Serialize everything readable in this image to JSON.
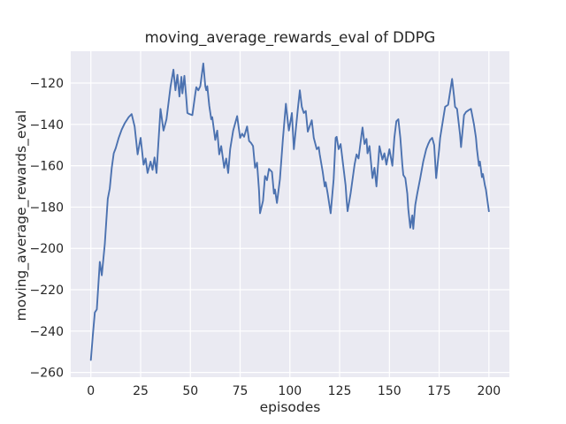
{
  "chart_data": {
    "type": "line",
    "title": "moving_average_rewards_eval of DDPG",
    "xlabel": "episodes",
    "ylabel": "moving_average_rewards_eval",
    "legend": null,
    "grid": true,
    "background_color": "#eaeaf2",
    "grid_color": "#ffffff",
    "line_color": "#4c72b0",
    "text_color": "#262626",
    "x_ticks": [
      0,
      25,
      50,
      75,
      100,
      125,
      150,
      175,
      200
    ],
    "y_ticks": [
      -120,
      -140,
      -160,
      -180,
      -200,
      -220,
      -240,
      -260
    ],
    "xlim": [
      -10.1,
      210.3
    ],
    "ylim": [
      -262.3,
      -104.6
    ],
    "series": [
      {
        "name": "moving_average_rewards_eval",
        "x": [
          0,
          1,
          2,
          3,
          4.5,
          5.5,
          7,
          8.5,
          9.5,
          10.5,
          11.5,
          12.5,
          14,
          15.5,
          17,
          19,
          20.5,
          22,
          23.5,
          25,
          26.5,
          27.5,
          28.5,
          30,
          31,
          32,
          33,
          35,
          36.5,
          38,
          40,
          41.5,
          42.5,
          43.5,
          44.5,
          45.5,
          46,
          47,
          48,
          48.5,
          49.5,
          51,
          52.5,
          53,
          54,
          55,
          56.5,
          57.5,
          58,
          58.5,
          59.5,
          60.5,
          61,
          62.5,
          63.5,
          64.5,
          65.5,
          67,
          68,
          69,
          70,
          71.5,
          73.5,
          75,
          76,
          77,
          78.5,
          79.5,
          80.5,
          81.5,
          82.5,
          83.5,
          84.5,
          85,
          86.5,
          87.5,
          88.5,
          89.5,
          91,
          92,
          92.5,
          93.5,
          95,
          96.5,
          98,
          99,
          99.5,
          101,
          102,
          104,
          105,
          106,
          107,
          108,
          109,
          111,
          112,
          113.5,
          114.5,
          115,
          116.5,
          117.5,
          118,
          119,
          120.5,
          122,
          123,
          123.5,
          124.5,
          125.5,
          127,
          128,
          128.5,
          129,
          130.5,
          131.5,
          132.5,
          133.5,
          134.5,
          136,
          136.5,
          137.5,
          138.5,
          139,
          140,
          141.5,
          142.5,
          143.5,
          145,
          146.5,
          147.5,
          148.5,
          150,
          151.5,
          152.5,
          153.5,
          154.5,
          155.5,
          156.5,
          157,
          158,
          159,
          159.5,
          160.5,
          161.5,
          162,
          163,
          164,
          165.5,
          167,
          168.5,
          169.5,
          170.5,
          171.5,
          172.5,
          173.5,
          175,
          175.5,
          178,
          179.5,
          181.5,
          182.5,
          183,
          184,
          185.5,
          186,
          187.5,
          188.5,
          190,
          191,
          192.5,
          193.5,
          194,
          195,
          195.5,
          196.5,
          197,
          198,
          198.5,
          199,
          200
        ],
        "y": [
          -254,
          -242,
          -231,
          -229.5,
          -206.5,
          -213,
          -198,
          -176,
          -171,
          -161,
          -154,
          -151.5,
          -146.5,
          -142.5,
          -139.5,
          -136.5,
          -135,
          -141,
          -154.5,
          -146.5,
          -159.5,
          -156.5,
          -163.5,
          -158,
          -162,
          -156,
          -163.5,
          -132.5,
          -143,
          -137.5,
          -122,
          -113.5,
          -123.5,
          -116,
          -126.5,
          -117,
          -125,
          -116.5,
          -128,
          -134.5,
          -135,
          -135.5,
          -125,
          -122,
          -123.5,
          -121.5,
          -110.5,
          -121.5,
          -123.5,
          -121.5,
          -131,
          -137.5,
          -136.5,
          -147.5,
          -143,
          -154.5,
          -150.5,
          -161,
          -156.5,
          -163.5,
          -152,
          -143,
          -136,
          -146.5,
          -144.5,
          -146,
          -141,
          -148,
          -149,
          -150.5,
          -161,
          -158.5,
          -172,
          -183,
          -177,
          -165,
          -167,
          -161.5,
          -163,
          -173.5,
          -171.5,
          -178,
          -166.5,
          -147,
          -130,
          -139,
          -143,
          -134.5,
          -152,
          -132.5,
          -123.5,
          -131.5,
          -134.5,
          -133.5,
          -143.5,
          -138,
          -146.5,
          -152,
          -151,
          -154.5,
          -163,
          -170,
          -168,
          -173.5,
          -183,
          -166.5,
          -146.5,
          -146,
          -152,
          -149.5,
          -161.5,
          -169.5,
          -176.5,
          -182,
          -173.5,
          -166.5,
          -159.5,
          -154.5,
          -156.5,
          -145,
          -141.5,
          -149.5,
          -147,
          -154,
          -150.5,
          -166,
          -161,
          -170,
          -150.5,
          -157,
          -154,
          -159.5,
          -152,
          -160,
          -146.5,
          -138.5,
          -137.5,
          -146.5,
          -159.5,
          -164.5,
          -166,
          -173.5,
          -181,
          -190,
          -184,
          -190.5,
          -179,
          -173.5,
          -166,
          -158,
          -152,
          -149.5,
          -147.5,
          -146.5,
          -150,
          -166,
          -152,
          -146.5,
          -131.5,
          -130.5,
          -118,
          -126.5,
          -131.5,
          -132.5,
          -145,
          -151,
          -135.5,
          -134,
          -133,
          -132.5,
          -140,
          -146.5,
          -152,
          -160,
          -158,
          -165.5,
          -164,
          -169.5,
          -171.5,
          -175,
          -182
        ]
      }
    ]
  }
}
